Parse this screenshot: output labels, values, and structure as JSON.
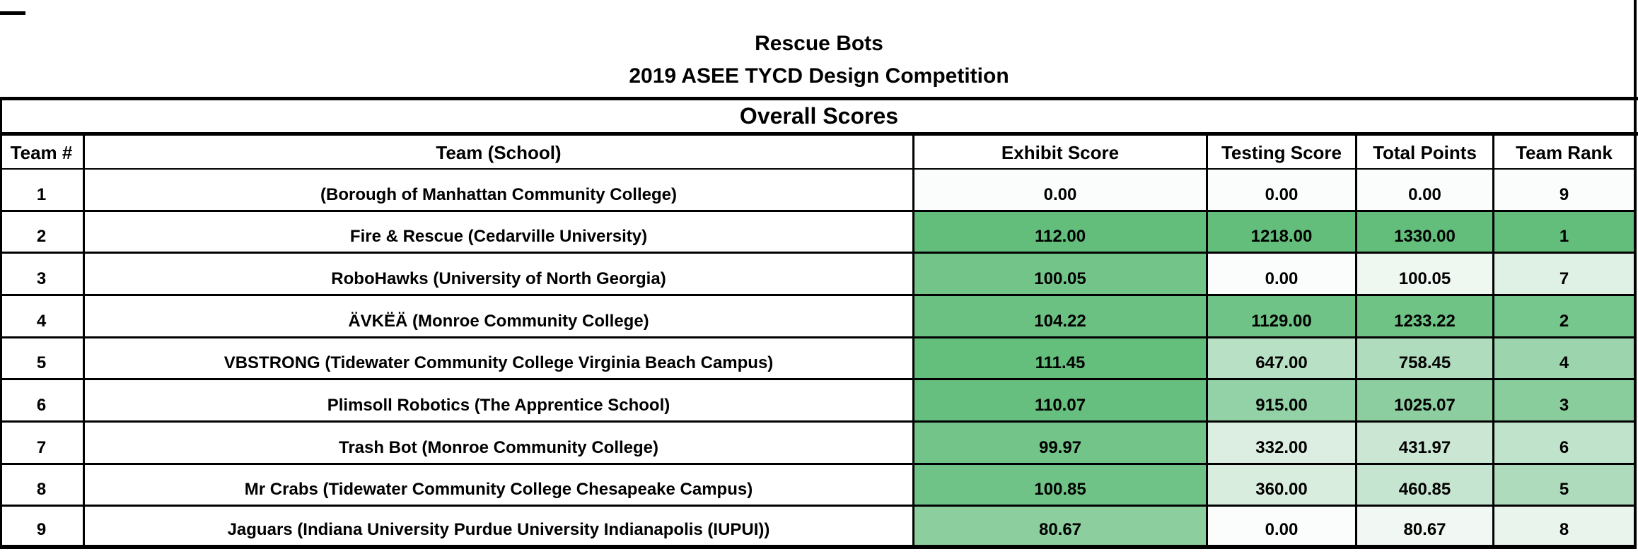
{
  "title": {
    "line1": "Rescue Bots",
    "line2": "2019 ASEE TYCD Design Competition"
  },
  "section_header": "Overall Scores",
  "colors": {
    "border": "#000000",
    "scale_min_bg": "#FBFCFC",
    "scale_max_bg": "#63BE7B"
  },
  "table": {
    "columns": [
      "Team #",
      "Team (School)",
      "Exhibit Score",
      "Testing Score",
      "Total Points",
      "Team Rank"
    ],
    "rows": [
      {
        "num": "1",
        "school": "(Borough of Manhattan Community College)",
        "exhibit": {
          "text": "0.00",
          "bg": "#FBFCFC"
        },
        "testing": {
          "text": "0.00",
          "bg": "#FBFCFC"
        },
        "total": {
          "text": "0.00",
          "bg": "#FBFCFC"
        },
        "rank": {
          "text": "9",
          "bg": "#FBFCFC"
        }
      },
      {
        "num": "2",
        "school": "Fire & Rescue (Cedarville University)",
        "exhibit": {
          "text": "112.00",
          "bg": "#63BE7B"
        },
        "testing": {
          "text": "1218.00",
          "bg": "#63BE7B"
        },
        "total": {
          "text": "1330.00",
          "bg": "#63BE7B"
        },
        "rank": {
          "text": "1",
          "bg": "#63BE7B"
        }
      },
      {
        "num": "3",
        "school": "RoboHawks (University of North Georgia)",
        "exhibit": {
          "text": "100.05",
          "bg": "#72C488"
        },
        "testing": {
          "text": "0.00",
          "bg": "#FBFCFC"
        },
        "total": {
          "text": "100.05",
          "bg": "#EFF7F1"
        },
        "rank": {
          "text": "7",
          "bg": "#DFF0E5"
        }
      },
      {
        "num": "4",
        "school": "ÄVKËÄ (Monroe Community College)",
        "exhibit": {
          "text": "104.22",
          "bg": "#6BC182"
        },
        "testing": {
          "text": "1129.00",
          "bg": "#6FC386"
        },
        "total": {
          "text": "1233.22",
          "bg": "#6EC385"
        },
        "rank": {
          "text": "2",
          "bg": "#76C78D"
        }
      },
      {
        "num": "5",
        "school": "VBSTRONG (Tidewater Community College Virginia Beach Campus)",
        "exhibit": {
          "text": "111.45",
          "bg": "#64BE7C"
        },
        "testing": {
          "text": "647.00",
          "bg": "#B8E0C4"
        },
        "total": {
          "text": "758.45",
          "bg": "#AFDCBD"
        },
        "rank": {
          "text": "4",
          "bg": "#9BD4AD"
        }
      },
      {
        "num": "6",
        "school": "Plimsoll Robotics (The Apprentice School)",
        "exhibit": {
          "text": "110.07",
          "bg": "#66BF7E"
        },
        "testing": {
          "text": "915.00",
          "bg": "#93D1A6"
        },
        "total": {
          "text": "1025.07",
          "bg": "#8CCE9F"
        },
        "rank": {
          "text": "3",
          "bg": "#89CD9D"
        }
      },
      {
        "num": "7",
        "school": "Trash Bot (Monroe Community College)",
        "exhibit": {
          "text": "99.97",
          "bg": "#72C488"
        },
        "testing": {
          "text": "332.00",
          "bg": "#DBEEE1"
        },
        "total": {
          "text": "431.97",
          "bg": "#CBE7D4"
        },
        "rank": {
          "text": "6",
          "bg": "#C0E3CB"
        }
      },
      {
        "num": "8",
        "school": "Mr Crabs (Tidewater Community College Chesapeake Campus)",
        "exhibit": {
          "text": "100.85",
          "bg": "#70C386"
        },
        "testing": {
          "text": "360.00",
          "bg": "#D8EDDE"
        },
        "total": {
          "text": "460.85",
          "bg": "#C6E5D0"
        },
        "rank": {
          "text": "5",
          "bg": "#ADDBBB"
        }
      },
      {
        "num": "9",
        "school": "Jaguars (Indiana University Purdue University Indianapolis (IUPUI))",
        "exhibit": {
          "text": "80.67",
          "bg": "#8DCE9F"
        },
        "testing": {
          "text": "0.00",
          "bg": "#FBFCFC"
        },
        "total": {
          "text": "80.67",
          "bg": "#F1F8F3"
        },
        "rank": {
          "text": "8",
          "bg": "#E9F4EC"
        }
      }
    ]
  }
}
